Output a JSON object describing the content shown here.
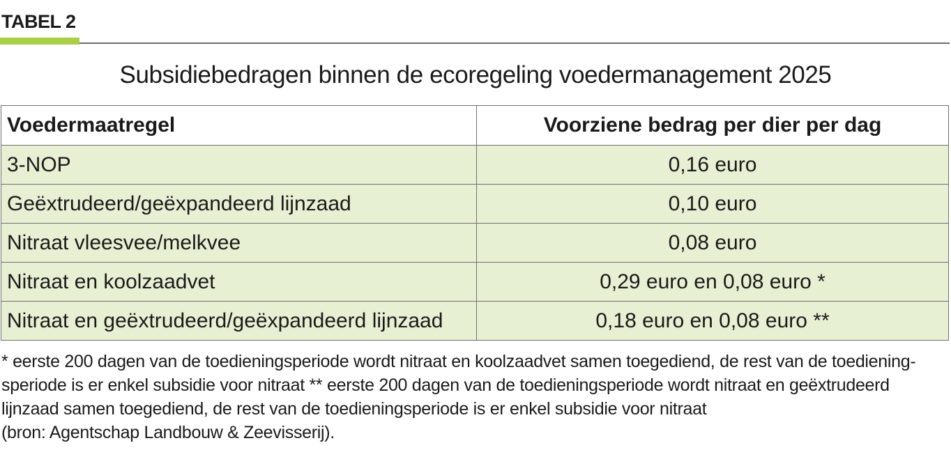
{
  "label": "TABEL 2",
  "title": "Subsidiebedragen binnen de ecoregeling voedermanagement 2025",
  "table": {
    "headers": [
      "Voedermaatregel",
      "Voorziene bedrag per dier per dag"
    ],
    "rows": [
      [
        "3-NOP",
        "0,16 euro"
      ],
      [
        "Geëxtrudeerd/geëxpandeerd lijnzaad",
        "0,10 euro"
      ],
      [
        "Nitraat vleesvee/melkvee",
        "0,08 euro"
      ],
      [
        "Nitraat en koolzaadvet",
        "0,29 euro en 0,08 euro *"
      ],
      [
        "Nitraat en geëxtrudeerd/geëxpandeerd lijnzaad",
        "0,18 euro en 0,08 euro **"
      ]
    ]
  },
  "footnotes": [
    "* eerste 200 dagen van de toedieningsperiode wordt nitraat en koolzaadvet samen toegediend, de rest van de toediening-",
    "speriode is er enkel subsidie voor nitraat  ** eerste 200 dagen van de toedieningsperiode wordt nitraat en geëxtrudeerd",
    "lijnzaad samen toegediend, de rest van de toedieningsperiode is er enkel subsidie voor nitraat",
    "(bron: Agentschap Landbouw & Zeevisserij)."
  ],
  "colors": {
    "accent_green": "#a8cf45",
    "row_background": "#e8f0d3",
    "rule_gray": "#6d6d6d"
  }
}
